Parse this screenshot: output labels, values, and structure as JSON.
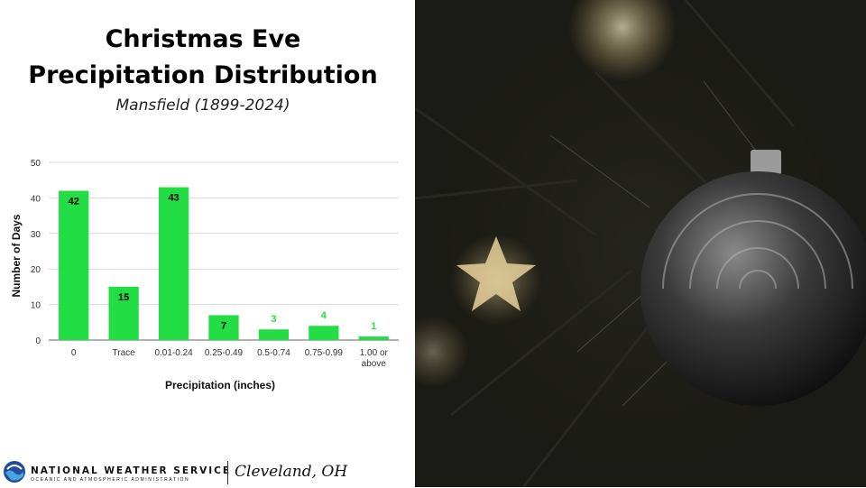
{
  "slide": {
    "title_line1": "Christmas Eve",
    "title_line2": "Precipitation Distribution",
    "subtitle": "Mansfield (1899-2024)"
  },
  "chart_data": {
    "type": "bar",
    "categories": [
      "0",
      "Trace",
      "0.01-0.24",
      "0.25-0.49",
      "0.5-0.74",
      "0.75-0.99",
      "1.00 or above"
    ],
    "values": [
      42,
      15,
      43,
      7,
      3,
      4,
      1
    ],
    "xlabel": "Precipitation (inches)",
    "ylabel": "Number of Days",
    "ylim": [
      0,
      50
    ],
    "yticks": [
      0,
      10,
      20,
      30,
      40,
      50
    ],
    "grid": true,
    "bar_color": "#22dd44",
    "label_inside_color": "#000000",
    "label_outside_color": "#22dd44"
  },
  "footer": {
    "agency": "NATIONAL WEATHER SERVICE",
    "agency_sub": "OCEANIC AND ATMOSPHERIC ADMINISTRATION",
    "office": "Cleveland, OH",
    "logo_icon": "noaa-logo-icon"
  },
  "photo": {
    "icon": "christmas-ornament-photo-icon"
  }
}
